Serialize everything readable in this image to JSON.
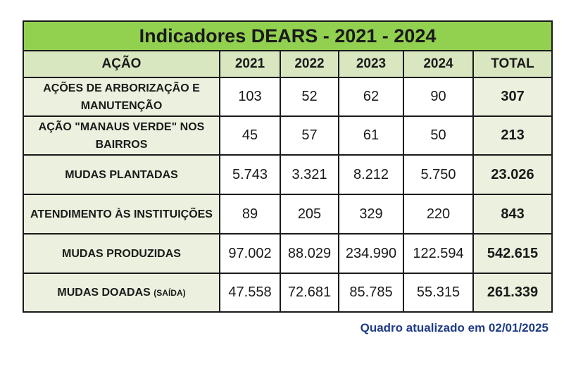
{
  "table": {
    "title": "Indicadores DEARS - 2021 - 2024",
    "headers": {
      "action": "AÇÃO",
      "y2021": "2021",
      "y2022": "2022",
      "y2023": "2023",
      "y2024": "2024",
      "total": "TOTAL"
    },
    "rows": [
      {
        "action_line1": "AÇÕES DE ARBORIZAÇÃO E",
        "action_line2": "MANUTENÇÃO",
        "y2021": "103",
        "y2022": "52",
        "y2023": "62",
        "y2024": "90",
        "total": "307"
      },
      {
        "action_line1": "AÇÃO \"MANAUS VERDE\" NOS",
        "action_line2": "BAIRROS",
        "y2021": "45",
        "y2022": "57",
        "y2023": "61",
        "y2024": "50",
        "total": "213"
      },
      {
        "action": "MUDAS PLANTADAS",
        "y2021": "5.743",
        "y2022": "3.321",
        "y2023": "8.212",
        "y2024": "5.750",
        "total": "23.026"
      },
      {
        "action": "ATENDIMENTO ÀS INSTITUIÇÕES",
        "y2021": "89",
        "y2022": "205",
        "y2023": "329",
        "y2024": "220",
        "total": "843"
      },
      {
        "action": "MUDAS PRODUZIDAS",
        "y2021": "97.002",
        "y2022": "88.029",
        "y2023": "234.990",
        "y2024": "122.594",
        "total": "542.615"
      },
      {
        "action_main": "MUDAS DOADAS",
        "action_suffix": "(SAÍDA)",
        "y2021": "47.558",
        "y2022": "72.681",
        "y2023": "85.785",
        "y2024": "55.315",
        "total": "261.339"
      }
    ]
  },
  "footer": {
    "note": "Quadro atualizado em 02/01/2025"
  },
  "colors": {
    "title_bg": "#92d050",
    "header_bg": "#d9e7c1",
    "action_bg": "#ebf1de",
    "footer_text": "#1f3c88"
  }
}
